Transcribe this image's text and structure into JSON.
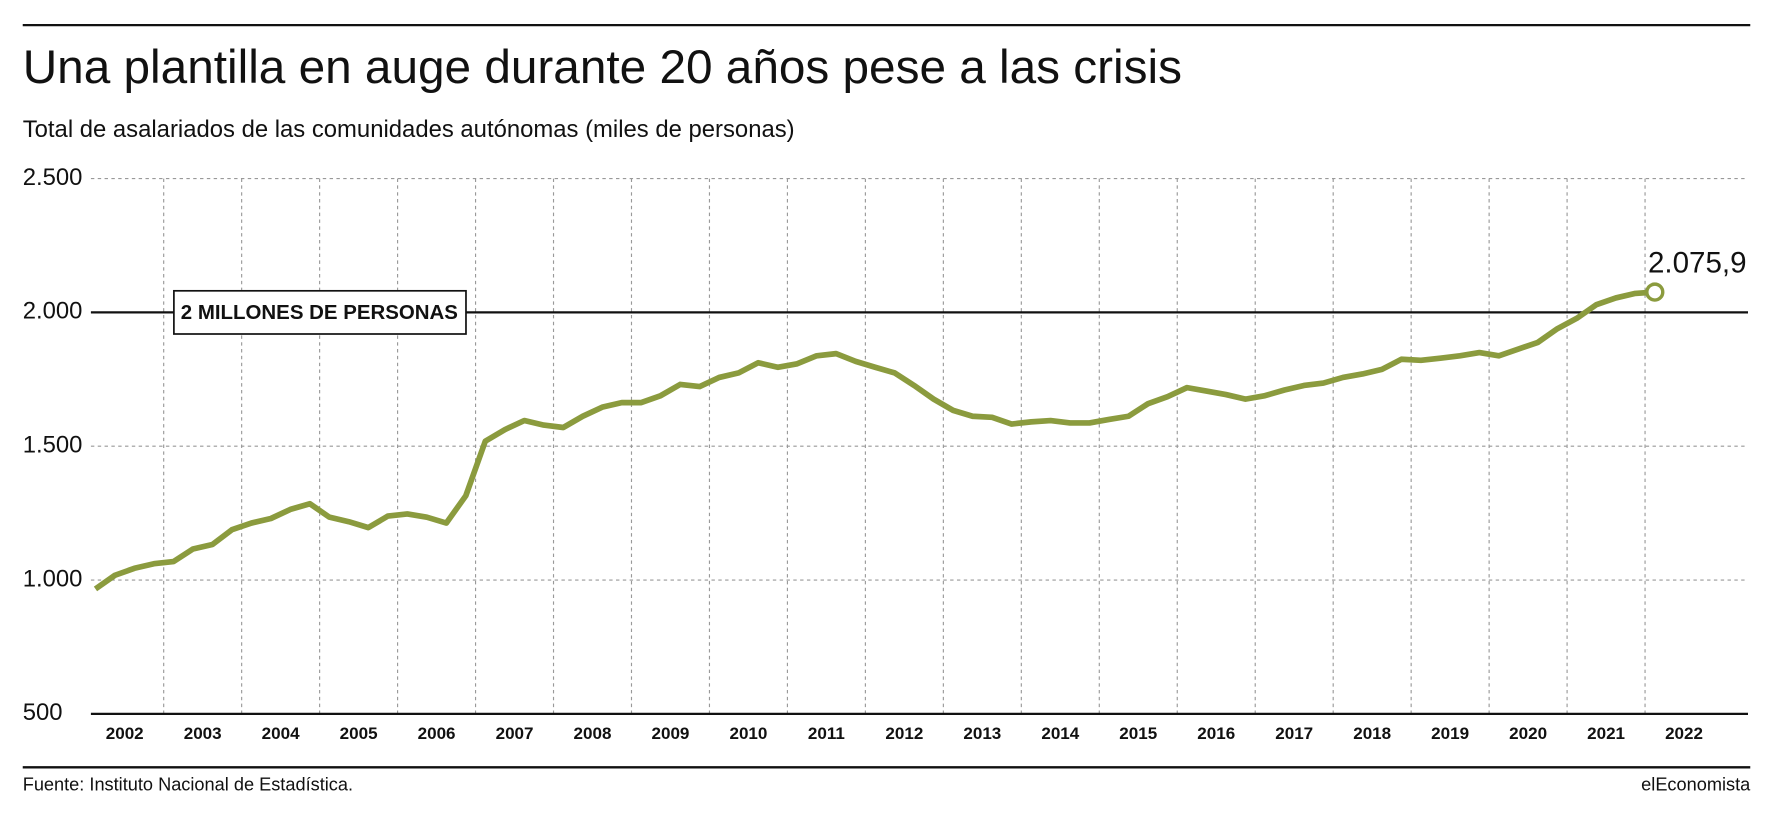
{
  "chart_data": {
    "type": "line",
    "title": "Una plantilla en auge durante 20 años pese a las crisis",
    "subtitle": "Total de asalariados de las comunidades autónomas (miles de personas)",
    "source": "Fuente: Instituto Nacional de Estadística.",
    "brand": "elEconomista",
    "categories": [
      "2002",
      null,
      null,
      null,
      "2003",
      null,
      null,
      null,
      "2004",
      null,
      null,
      null,
      "2005",
      null,
      null,
      null,
      "2006",
      null,
      null,
      null,
      "2007",
      null,
      null,
      null,
      "2008",
      null,
      null,
      null,
      "2009",
      null,
      null,
      null,
      "2010",
      null,
      null,
      null,
      "2011",
      null,
      null,
      null,
      "2012",
      null,
      null,
      null,
      "2013",
      null,
      null,
      null,
      "2014",
      null,
      null,
      null,
      "2015",
      null,
      null,
      null,
      "2016",
      null,
      null,
      null,
      "2017",
      null,
      null,
      null,
      "2018",
      null,
      null,
      null,
      "2019",
      null,
      null,
      null,
      "2020",
      null,
      null,
      null,
      "2021",
      null,
      null,
      null,
      "2022"
    ],
    "series": [
      {
        "name": "Asalariados",
        "color": "#8b9b3e",
        "values": [
          967,
          1018,
          1044,
          1061,
          1069,
          1116,
          1133,
          1188,
          1213,
          1230,
          1264,
          1285,
          1235,
          1218,
          1196,
          1239,
          1247,
          1235,
          1213,
          1315,
          1519,
          1562,
          1596,
          1579,
          1570,
          1612,
          1646,
          1663,
          1663,
          1689,
          1731,
          1723,
          1757,
          1774,
          1812,
          1795,
          1808,
          1838,
          1846,
          1817,
          1795,
          1774,
          1727,
          1676,
          1634,
          1612,
          1608,
          1583,
          1591,
          1596,
          1587,
          1587,
          1600,
          1612,
          1659,
          1685,
          1719,
          1706,
          1693,
          1676,
          1689,
          1710,
          1727,
          1736,
          1757,
          1770,
          1787,
          1825,
          1821,
          1829,
          1838,
          1850,
          1838,
          1863,
          1888,
          1939,
          1978,
          2029,
          2054,
          2071,
          2075.9
        ],
        "value_labels": [
          null,
          null,
          null,
          null,
          null,
          null,
          null,
          null,
          null,
          null,
          null,
          null,
          null,
          null,
          null,
          null,
          null,
          null,
          null,
          null,
          null,
          null,
          null,
          null,
          null,
          null,
          null,
          null,
          null,
          null,
          null,
          null,
          null,
          null,
          null,
          null,
          null,
          null,
          null,
          null,
          null,
          null,
          null,
          null,
          null,
          null,
          null,
          null,
          null,
          null,
          null,
          null,
          null,
          null,
          null,
          null,
          null,
          null,
          null,
          null,
          null,
          null,
          null,
          null,
          null,
          null,
          null,
          null,
          null,
          null,
          null,
          null,
          null,
          null,
          null,
          null,
          null,
          null,
          null,
          null,
          "2.075,9"
        ]
      }
    ],
    "reference_line": {
      "value": 2000,
      "label": "2 MILLONES DE PERSONAS"
    },
    "ylim": [
      500,
      2500
    ],
    "yticks": [
      {
        "value": 500,
        "label": "500"
      },
      {
        "value": 1000,
        "label": "1.000"
      },
      {
        "value": 1500,
        "label": "1.500"
      },
      {
        "value": 2000,
        "label": "2.000"
      },
      {
        "value": 2500,
        "label": "2.500"
      }
    ],
    "grid": true
  }
}
